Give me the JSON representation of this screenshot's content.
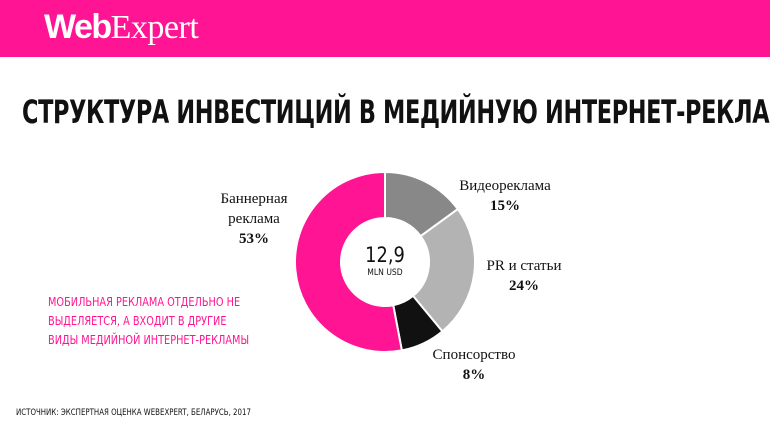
{
  "header": {
    "logo_part1": "Web",
    "logo_part2": "Expert",
    "background": "#ff1493"
  },
  "title": "СТРУКТУРА ИНВЕСТИЦИЙ В МЕДИЙНУЮ ИНТЕРНЕТ-РЕКЛАМУ",
  "chart_data": {
    "type": "pie",
    "style": "donut",
    "total": {
      "value": "12,9",
      "unit": "MLN USD"
    },
    "series": [
      {
        "name": "Видеореклама",
        "label": [
          "Видеореклама"
        ],
        "value": 15,
        "percent": "15%",
        "color": "#888888"
      },
      {
        "name": "PR и статьи",
        "label": [
          "PR и статьи"
        ],
        "value": 24,
        "percent": "24%",
        "color": "#b3b3b3"
      },
      {
        "name": "Спонсорство",
        "label": [
          "Спонсорство"
        ],
        "value": 8,
        "percent": "8%",
        "color": "#111111"
      },
      {
        "name": "Баннерная реклама",
        "label": [
          "Баннерная",
          "реклама"
        ],
        "value": 53,
        "percent": "53%",
        "color": "#ff1493"
      }
    ]
  },
  "note": [
    "МОБИЛЬНАЯ РЕКЛАМА ОТДЕЛЬНО НЕ",
    "ВЫДЕЛЯЕТСЯ, А ВХОДИТ В ДРУГИЕ",
    "ВИДЫ МЕДИЙНОЙ ИНТЕРНЕТ-РЕКЛАМЫ"
  ],
  "source": "ИСТОЧНИК: ЭКСПЕРТНАЯ ОЦЕНКА WEBEXPERT, БЕЛАРУСЬ, 2017"
}
